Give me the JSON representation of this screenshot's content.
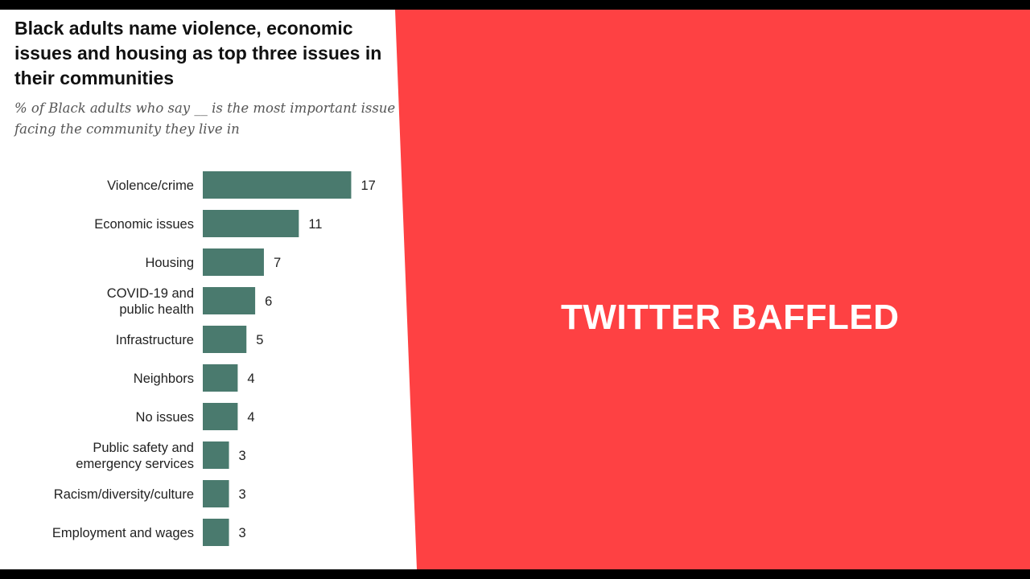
{
  "banner": {
    "headline": "TWITTER BAFFLED",
    "color": "#fe4143"
  },
  "chart_data": {
    "type": "bar",
    "orientation": "horizontal",
    "title": "Black adults name violence, economic issues and housing as top three issues in their communities",
    "subtitle": "% of Black adults who say __ is the most important issue facing the community they live in",
    "categories": [
      [
        "Violence/crime"
      ],
      [
        "Economic issues"
      ],
      [
        "Housing"
      ],
      [
        "COVID-19 and",
        "public health"
      ],
      [
        "Infrastructure"
      ],
      [
        "Neighbors"
      ],
      [
        "No issues"
      ],
      [
        "Public safety and",
        "emergency services"
      ],
      [
        "Racism/diversity/culture"
      ],
      [
        "Employment and wages"
      ]
    ],
    "values": [
      17,
      11,
      7,
      6,
      5,
      4,
      4,
      3,
      3,
      3
    ],
    "bar_color": "#4a7a6e",
    "grid": false,
    "legend": "none"
  }
}
